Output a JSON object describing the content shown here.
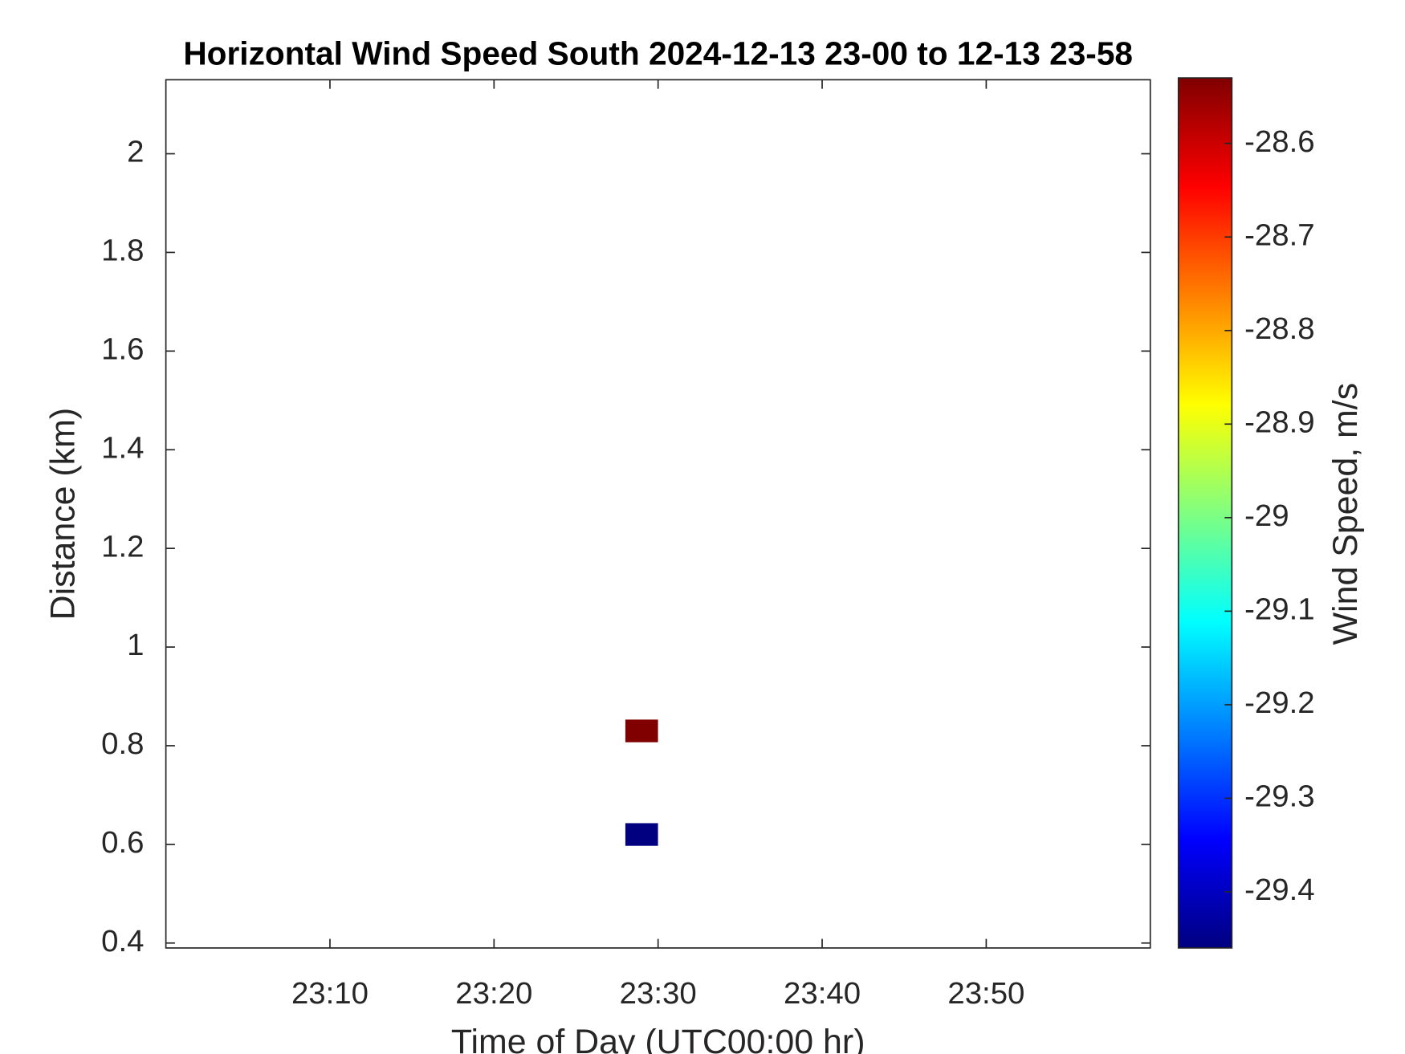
{
  "chart_data": {
    "type": "heatmap",
    "title": "Horizontal Wind Speed South 2024-12-13 23-00 to 12-13 23-58",
    "x_label": "Time of Day (UTC00:00 hr)",
    "y_label": "Distance (km)",
    "colorbar_label": "Wind Speed, m/s",
    "colormap": "jet",
    "x": [
      1409,
      1409
    ],
    "y": [
      0.83,
      0.62
    ],
    "values": [
      -28.53,
      -29.46
    ],
    "xlim": [
      1380,
      1440
    ],
    "xticks": [
      {
        "value": 1390,
        "label": "23:10"
      },
      {
        "value": 1400,
        "label": "23:20"
      },
      {
        "value": 1410,
        "label": "23:30"
      },
      {
        "value": 1420,
        "label": "23:40"
      },
      {
        "value": 1430,
        "label": "23:50"
      }
    ],
    "ylim": [
      0.39,
      2.15
    ],
    "yticks": [
      0.4,
      0.6,
      0.8,
      1,
      1.2,
      1.4,
      1.6,
      1.8,
      2
    ],
    "clim": [
      -29.46,
      -28.53
    ],
    "cticks": [
      -28.6,
      -28.7,
      -28.8,
      -28.9,
      -29,
      -29.1,
      -29.2,
      -29.3,
      -29.4
    ]
  }
}
